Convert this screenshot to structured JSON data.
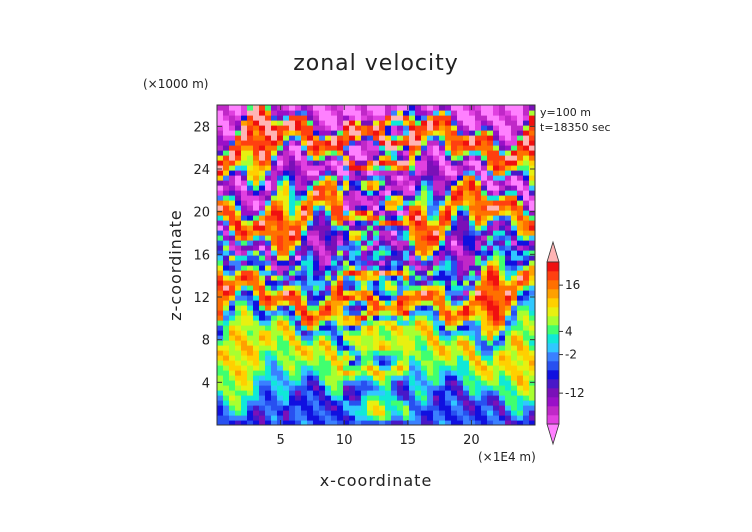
{
  "chart_data": {
    "type": "heatmap",
    "title": "zonal velocity",
    "xlabel": "x-coordinate",
    "ylabel": "z-coordinate",
    "x_unit": "(×1E4 m)",
    "y_unit": "(×1000 m)",
    "annotations": [
      "y=100 m",
      "t=18350 sec"
    ],
    "xlim": [
      0,
      25
    ],
    "ylim": [
      0,
      30
    ],
    "x_ticks": [
      5,
      10,
      15,
      20
    ],
    "y_ticks": [
      4,
      8,
      12,
      16,
      20,
      24,
      28
    ],
    "colorbar": {
      "tick_labels": [
        "16",
        "4",
        "-2",
        "-12"
      ],
      "tick_values": [
        16,
        4,
        -2,
        -12
      ],
      "range": [
        -20,
        22
      ],
      "colors": [
        "#ff80ff",
        "#e040e0",
        "#c028c8",
        "#9a10c8",
        "#7a10b8",
        "#4818c8",
        "#1010e0",
        "#2850f0",
        "#3a80ff",
        "#30c8ff",
        "#10e8d8",
        "#40ff70",
        "#a8ff30",
        "#e8f010",
        "#ffd000",
        "#ffa000",
        "#ff7000",
        "#ff4010",
        "#f01010",
        "#ffb4b4"
      ]
    },
    "layers": [
      {
        "z": 0.0,
        "value": -4
      },
      {
        "z": 1.5,
        "value": -8
      },
      {
        "z": 3.0,
        "value": 0
      },
      {
        "z": 4.5,
        "value": 4
      },
      {
        "z": 6.0,
        "value": 8
      },
      {
        "z": 7.5,
        "value": 10
      },
      {
        "z": 9.0,
        "value": 2
      },
      {
        "z": 10.0,
        "value": -6
      },
      {
        "z": 11.0,
        "value": 12
      },
      {
        "z": 12.5,
        "value": 18
      },
      {
        "z": 13.5,
        "value": 6
      },
      {
        "z": 14.5,
        "value": -12
      },
      {
        "z": 15.5,
        "value": 6
      },
      {
        "z": 16.5,
        "value": -16
      },
      {
        "z": 17.5,
        "value": -8
      },
      {
        "z": 18.5,
        "value": 12
      },
      {
        "z": 20.0,
        "value": 19
      },
      {
        "z": 21.0,
        "value": 10
      },
      {
        "z": 22.0,
        "value": -12
      },
      {
        "z": 23.0,
        "value": -18
      },
      {
        "z": 24.0,
        "value": -14
      },
      {
        "z": 25.0,
        "value": 8
      },
      {
        "z": 26.0,
        "value": 18
      },
      {
        "z": 27.5,
        "value": 19
      },
      {
        "z": 28.5,
        "value": -14
      },
      {
        "z": 30.0,
        "value": -18
      }
    ]
  }
}
